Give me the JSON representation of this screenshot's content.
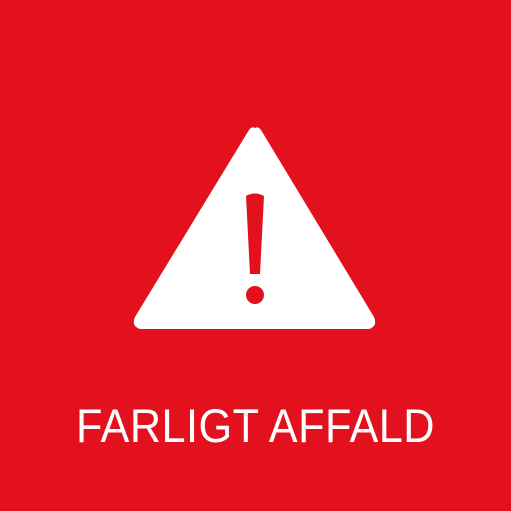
{
  "sign": {
    "label": "FARLIGT AFFALD",
    "background_color": "#E3111E",
    "foreground_color": "#FFFFFF",
    "icon": "warning-triangle-exclamation-icon"
  }
}
